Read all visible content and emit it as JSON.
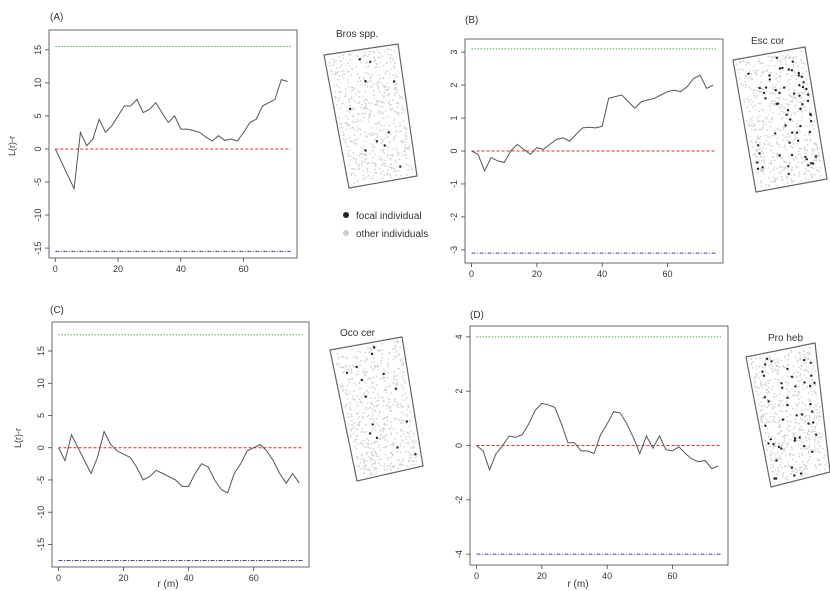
{
  "legend": {
    "focal_label": "focal individual",
    "other_label": "other individuals"
  },
  "colors": {
    "curve": "#555555",
    "upper_envelope": "#55aa55",
    "zero_line": "#cc3333",
    "lower_envelope": "#4444aa",
    "focal_point": "#222222",
    "other_point": "#cfcfcf"
  },
  "chart_data": [
    {
      "type": "line",
      "panel_label": "(A)",
      "species": "Bros spp.",
      "xlabel": "",
      "ylabel": "L(r)-r",
      "xlim": [
        -2,
        77
      ],
      "ylim": [
        -16.5,
        18
      ],
      "xticks": [
        0,
        20,
        40,
        60
      ],
      "yticks": [
        -15,
        -10,
        -5,
        0,
        5,
        10,
        15
      ],
      "upper": 15.5,
      "lower": -15.5,
      "x": [
        0,
        3,
        6,
        8,
        10,
        12,
        14,
        16,
        18,
        20,
        22,
        24,
        26,
        28,
        30,
        32,
        34,
        36,
        38,
        40,
        42,
        44,
        46,
        48,
        50,
        52,
        54,
        56,
        58,
        60,
        62,
        64,
        66,
        68,
        70,
        72,
        74
      ],
      "y": [
        0,
        -3,
        -6,
        2.5,
        0.5,
        1.5,
        4.5,
        2.5,
        3.5,
        5,
        6.5,
        6.5,
        7.5,
        5.5,
        6,
        7,
        5.5,
        4,
        5,
        3,
        3,
        2.8,
        2.5,
        1.8,
        1.2,
        2,
        1.3,
        1.5,
        1.2,
        2.5,
        4,
        4.5,
        6.5,
        7,
        7.5,
        10.5,
        10.2
      ],
      "focal_count": 10,
      "other_count": 600
    },
    {
      "type": "line",
      "panel_label": "(B)",
      "species": "Esc cor",
      "xlabel": "",
      "ylabel": "",
      "xlim": [
        -2,
        77
      ],
      "ylim": [
        -3.4,
        3.4
      ],
      "xticks": [
        0,
        20,
        40,
        60
      ],
      "yticks": [
        -3,
        -2,
        -1,
        0,
        1,
        2,
        3
      ],
      "upper": 3.1,
      "lower": -3.1,
      "x": [
        0,
        2,
        4,
        6,
        8,
        10,
        12,
        14,
        16,
        18,
        20,
        22,
        24,
        26,
        28,
        30,
        32,
        34,
        36,
        38,
        40,
        42,
        44,
        46,
        48,
        50,
        52,
        54,
        56,
        58,
        60,
        62,
        64,
        66,
        68,
        70,
        72,
        74
      ],
      "y": [
        0,
        -0.1,
        -0.6,
        -0.2,
        -0.3,
        -0.35,
        0,
        0.2,
        0.05,
        -0.1,
        0.1,
        0.05,
        0.2,
        0.35,
        0.4,
        0.3,
        0.5,
        0.7,
        0.72,
        0.7,
        0.75,
        1.6,
        1.65,
        1.7,
        1.5,
        1.3,
        1.5,
        1.55,
        1.6,
        1.7,
        1.8,
        1.85,
        1.8,
        1.95,
        2.2,
        2.3,
        1.9,
        2.0
      ],
      "focal_count": 60,
      "other_count": 600
    },
    {
      "type": "line",
      "panel_label": "(C)",
      "species": "Oco cer",
      "xlabel": "r (m)",
      "ylabel": "L(r)-r",
      "xlim": [
        -2,
        77
      ],
      "ylim": [
        -18.5,
        19.5
      ],
      "xticks": [
        0,
        20,
        40,
        60
      ],
      "yticks": [
        -15,
        -10,
        -5,
        0,
        5,
        10,
        15
      ],
      "upper": 17.5,
      "lower": -17.5,
      "x": [
        0,
        2,
        4,
        6,
        8,
        10,
        12,
        14,
        16,
        18,
        20,
        22,
        24,
        26,
        28,
        30,
        32,
        34,
        36,
        38,
        40,
        42,
        44,
        46,
        48,
        50,
        52,
        54,
        56,
        58,
        60,
        62,
        64,
        66,
        68,
        70,
        72,
        74
      ],
      "y": [
        0,
        -2,
        2,
        0,
        -2,
        -4,
        -1.5,
        2.5,
        0.5,
        -0.5,
        -1,
        -1.5,
        -3,
        -5,
        -4.5,
        -3.5,
        -4,
        -4.5,
        -5,
        -6,
        -6,
        -4,
        -2.5,
        -3,
        -5,
        -6.5,
        -7,
        -4,
        -2.5,
        -0.5,
        0,
        0.5,
        -0.5,
        -2,
        -4,
        -5.5,
        -4,
        -5.5
      ],
      "focal_count": 14,
      "other_count": 600
    },
    {
      "type": "line",
      "panel_label": "(D)",
      "species": "Pro heb",
      "xlabel": "r (m)",
      "ylabel": "",
      "xlim": [
        -2,
        77
      ],
      "ylim": [
        -4.4,
        4.4
      ],
      "xticks": [
        0,
        20,
        40,
        60
      ],
      "yticks": [
        -4,
        -2,
        0,
        2,
        4
      ],
      "upper": 4.0,
      "lower": -4.0,
      "x": [
        0,
        2,
        4,
        6,
        8,
        10,
        12,
        14,
        16,
        18,
        20,
        22,
        24,
        26,
        28,
        30,
        32,
        34,
        36,
        38,
        40,
        42,
        44,
        46,
        48,
        50,
        52,
        54,
        56,
        58,
        60,
        62,
        64,
        66,
        68,
        70,
        72,
        74
      ],
      "y": [
        0,
        -0.2,
        -0.9,
        -0.3,
        0,
        0.35,
        0.3,
        0.4,
        0.8,
        1.3,
        1.55,
        1.5,
        1.4,
        0.8,
        0.1,
        0.1,
        -0.2,
        -0.2,
        -0.3,
        0.4,
        0.8,
        1.25,
        1.2,
        0.8,
        0.3,
        -0.3,
        0.35,
        -0.1,
        0.35,
        -0.15,
        -0.2,
        -0.05,
        -0.3,
        -0.5,
        -0.6,
        -0.55,
        -0.85,
        -0.75
      ],
      "focal_count": 45,
      "other_count": 600
    }
  ]
}
